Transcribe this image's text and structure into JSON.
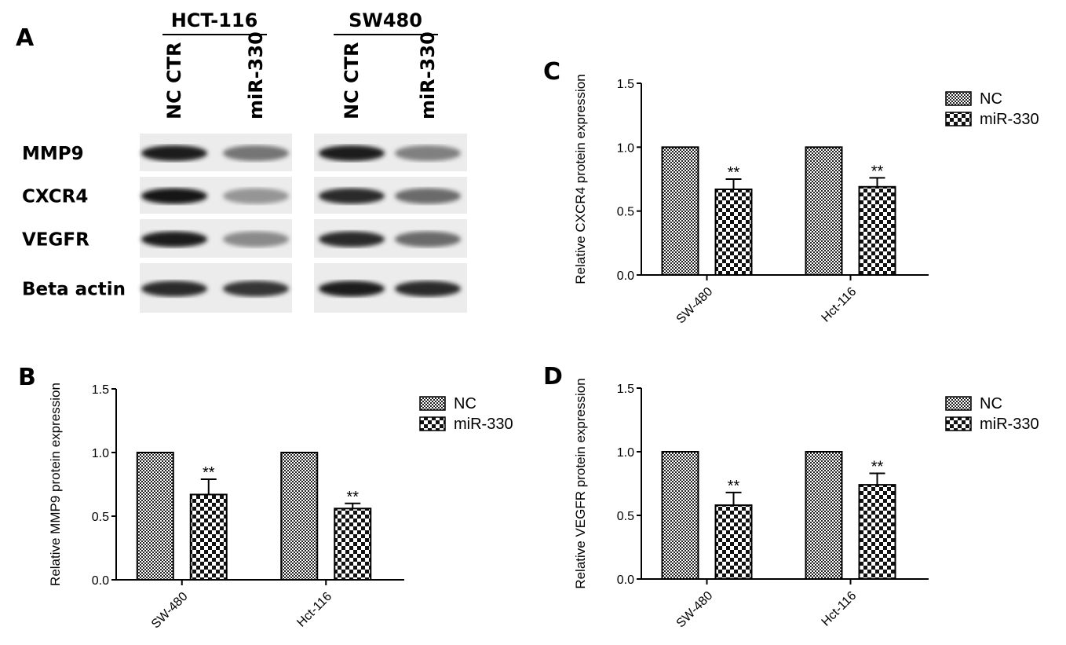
{
  "panel_a": {
    "letter": "A",
    "groups": [
      "HCT-116",
      "SW480"
    ],
    "lanes": [
      "NC CTR",
      "miR-330",
      "NC CTR",
      "miR-330"
    ],
    "rows": [
      {
        "label": "MMP9",
        "intensity": [
          0.95,
          0.55,
          0.95,
          0.5
        ]
      },
      {
        "label": "CXCR4",
        "intensity": [
          1.0,
          0.4,
          0.9,
          0.6
        ]
      },
      {
        "label": "VEGFR",
        "intensity": [
          0.95,
          0.45,
          0.9,
          0.6
        ]
      },
      {
        "label": "Beta actin",
        "intensity": [
          0.9,
          0.85,
          0.95,
          0.9
        ]
      }
    ]
  },
  "chart_data": [
    {
      "panel": "B",
      "type": "bar",
      "categories": [
        "SW-480",
        "Hct-116"
      ],
      "ylabel": "Relative MMP9 protein expression",
      "ylim": [
        0,
        1.5
      ],
      "yticks": [
        "0.0",
        "0.5",
        "1.0",
        "1.5"
      ],
      "series": [
        {
          "name": "NC",
          "values": [
            1.0,
            1.0
          ],
          "errors": [
            0,
            0
          ]
        },
        {
          "name": "miR-330",
          "values": [
            0.67,
            0.56
          ],
          "errors": [
            0.12,
            0.04
          ],
          "annotations": [
            "**",
            "**"
          ]
        }
      ],
      "legend": "right"
    },
    {
      "panel": "C",
      "type": "bar",
      "categories": [
        "SW-480",
        "Hct-116"
      ],
      "ylabel": "Relative CXCR4 protein expression",
      "ylim": [
        0,
        1.5
      ],
      "yticks": [
        "0.0",
        "0.5",
        "1.0",
        "1.5"
      ],
      "series": [
        {
          "name": "NC",
          "values": [
            1.0,
            1.0
          ],
          "errors": [
            0,
            0
          ]
        },
        {
          "name": "miR-330",
          "values": [
            0.67,
            0.69
          ],
          "errors": [
            0.08,
            0.07
          ],
          "annotations": [
            "**",
            "**"
          ]
        }
      ],
      "legend": "right"
    },
    {
      "panel": "D",
      "type": "bar",
      "categories": [
        "SW-480",
        "Hct-116"
      ],
      "ylabel": "Relative VEGFR protein expression",
      "ylim": [
        0,
        1.5
      ],
      "yticks": [
        "0.0",
        "0.5",
        "1.0",
        "1.5"
      ],
      "series": [
        {
          "name": "NC",
          "values": [
            1.0,
            1.0
          ],
          "errors": [
            0,
            0
          ]
        },
        {
          "name": "miR-330",
          "values": [
            0.58,
            0.74
          ],
          "errors": [
            0.1,
            0.09
          ],
          "annotations": [
            "**",
            "**"
          ]
        }
      ],
      "legend": "right"
    }
  ]
}
